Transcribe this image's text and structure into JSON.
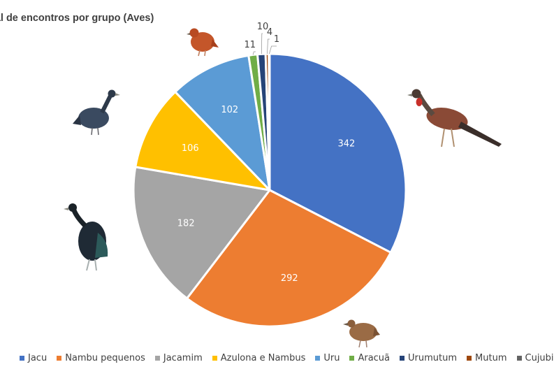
{
  "chart_data": {
    "type": "pie",
    "title": "tal de encontros por grupo (Aves)",
    "categories": [
      "Jacu",
      "Nambu pequenos",
      "Jacamim",
      "Azulona e Nambus",
      "Uru",
      "Aracuã",
      "Urumutum",
      "Mutum",
      "Cujubi"
    ],
    "values": [
      342,
      292,
      182,
      106,
      102,
      11,
      10,
      4,
      1
    ],
    "value_labels": [
      "342",
      "292",
      "182",
      "106",
      "102",
      "11",
      "10",
      "4",
      "1"
    ],
    "colors": [
      "#4472C4",
      "#ED7D31",
      "#A5A5A5",
      "#FFC000",
      "#5B9BD5",
      "#70AD47",
      "#264478",
      "#9E480E",
      "#636363"
    ],
    "legend_position": "bottom",
    "start": "top, clockwise"
  },
  "illustrations": [
    {
      "icon": "partridge-bird-icon",
      "color": "#C4562A"
    },
    {
      "icon": "dark-bird-icon",
      "color": "#2E3A4A"
    },
    {
      "icon": "guan-bird-icon",
      "color": "#8A4A36"
    },
    {
      "icon": "trumpeter-bird-icon",
      "color": "#1F2A35"
    },
    {
      "icon": "tinamou-bird-icon",
      "color": "#9A6B45"
    }
  ]
}
